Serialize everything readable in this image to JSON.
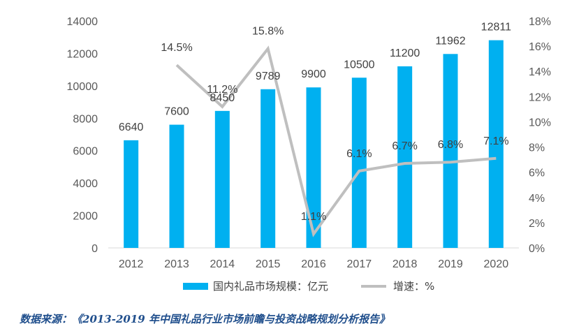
{
  "chart_data": {
    "type": "bar",
    "categories": [
      "2012",
      "2013",
      "2014",
      "2015",
      "2016",
      "2017",
      "2018",
      "2019",
      "2020"
    ],
    "series": [
      {
        "name": "国内礼品市场规模：亿元",
        "type": "bar",
        "axis": "left",
        "values": [
          6640,
          7600,
          8450,
          9789,
          9900,
          10500,
          11200,
          11962,
          12811
        ],
        "labels": [
          "6640",
          "7600",
          "8450",
          "9789",
          "9900",
          "10500",
          "11200",
          "11962",
          "12811"
        ],
        "color": "#00b0f0"
      },
      {
        "name": "增速：%",
        "type": "line",
        "axis": "right",
        "values": [
          null,
          14.5,
          11.2,
          15.8,
          1.1,
          6.1,
          6.7,
          6.8,
          7.1
        ],
        "labels": [
          "",
          "14.5%",
          "11.2%",
          "15.8%",
          "1.1%",
          "6.1%",
          "6.7%",
          "6.8%",
          "7.1%"
        ],
        "color": "#bfbfbf"
      }
    ],
    "y_left": {
      "range": [
        0,
        14000
      ],
      "ticks": [
        "0",
        "2000",
        "4000",
        "6000",
        "8000",
        "10000",
        "12000",
        "14000"
      ]
    },
    "y_right": {
      "range": [
        0,
        18
      ],
      "ticks": [
        "0%",
        "2%",
        "4%",
        "6%",
        "8%",
        "10%",
        "12%",
        "14%",
        "16%",
        "18%"
      ]
    },
    "grid": false,
    "legend": "bottom"
  },
  "source_note": "数据来源：《2013-2019 年中国礼品行业市场前瞻与投资战略规划分析报告》"
}
